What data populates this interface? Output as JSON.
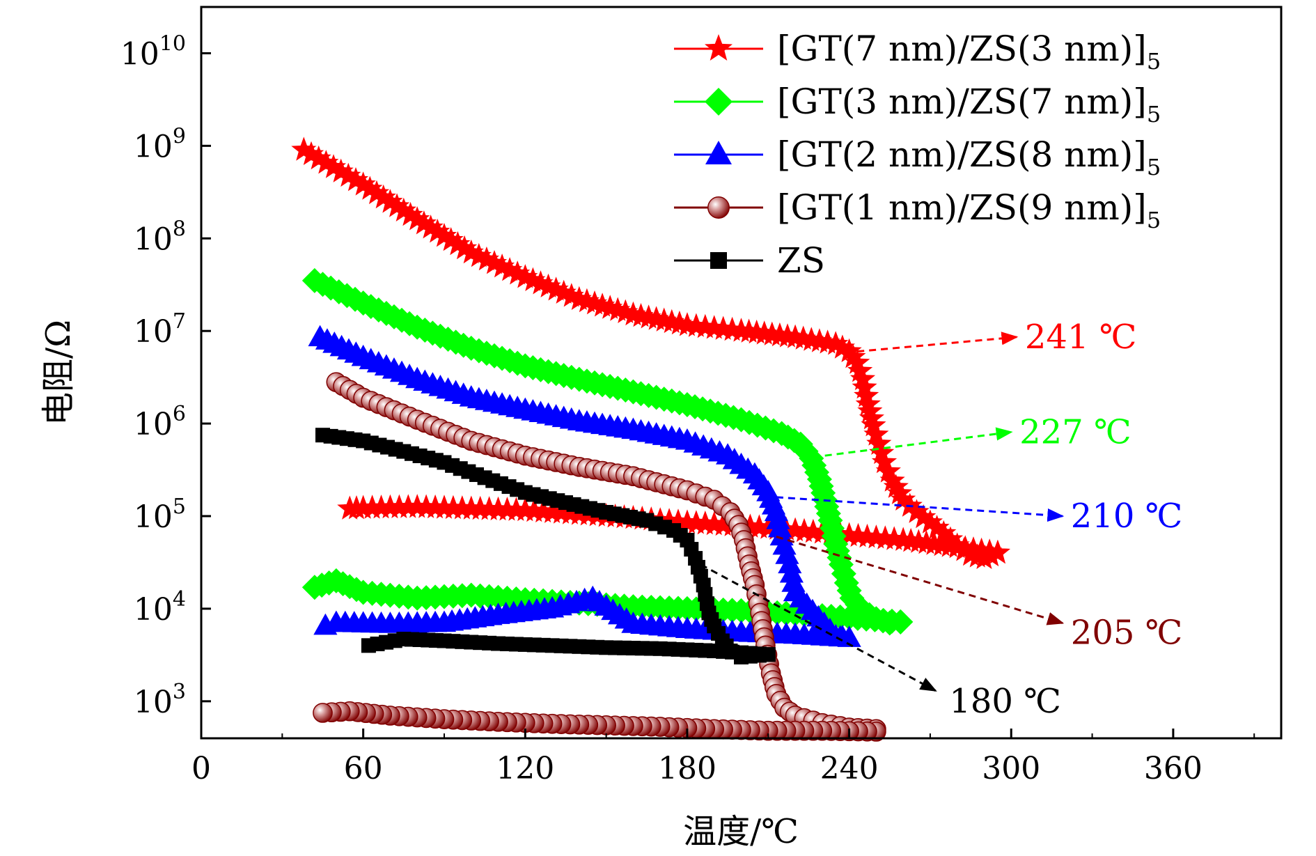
{
  "chart_data": {
    "type": "scatter",
    "xlabel": "温度/℃",
    "ylabel": "电阻/Ω",
    "xlim": [
      0,
      400
    ],
    "ylim_log10": [
      2.6,
      10.5
    ],
    "y_scale": "log",
    "x_ticks": [
      "0",
      "60",
      "120",
      "180",
      "240",
      "300",
      "360"
    ],
    "x_tick_values": [
      0,
      60,
      120,
      180,
      240,
      300,
      360
    ],
    "y_ticks": [
      {
        "base": "10",
        "exp": "3",
        "value": 3
      },
      {
        "base": "10",
        "exp": "4",
        "value": 4
      },
      {
        "base": "10",
        "exp": "5",
        "value": 5
      },
      {
        "base": "10",
        "exp": "6",
        "value": 6
      },
      {
        "base": "10",
        "exp": "7",
        "value": 7
      },
      {
        "base": "10",
        "exp": "8",
        "value": 8
      },
      {
        "base": "10",
        "exp": "9",
        "value": 9
      },
      {
        "base": "10",
        "exp": "10",
        "value": 10
      }
    ],
    "legend_position": "top-right",
    "series": [
      {
        "name": "[GT(7 nm)/ZS(3 nm)]",
        "name_subscript": "5",
        "color": "#ff0000",
        "marker": "star",
        "heating": [
          [
            38,
            900000000
          ],
          [
            60,
            380000000
          ],
          [
            80,
            160000000
          ],
          [
            100,
            70000000
          ],
          [
            120,
            38000000
          ],
          [
            140,
            22000000
          ],
          [
            160,
            15000000
          ],
          [
            180,
            11500000
          ],
          [
            200,
            10000000
          ],
          [
            220,
            8500000
          ],
          [
            235,
            7200000
          ],
          [
            240,
            6000000
          ],
          [
            243,
            4500000
          ],
          [
            245,
            3000000
          ],
          [
            247,
            1600000
          ],
          [
            249,
            950000
          ],
          [
            251,
            600000
          ],
          [
            253,
            380000
          ],
          [
            256,
            240000
          ],
          [
            260,
            150000
          ],
          [
            265,
            110000
          ],
          [
            270,
            85000
          ],
          [
            275,
            65000
          ],
          [
            280,
            48000
          ],
          [
            285,
            38000
          ],
          [
            290,
            35000
          ],
          [
            295,
            40000
          ]
        ],
        "cooling": [
          [
            295,
            40000
          ],
          [
            280,
            46000
          ],
          [
            260,
            55000
          ],
          [
            240,
            62000
          ],
          [
            220,
            70000
          ],
          [
            200,
            78000
          ],
          [
            180,
            85000
          ],
          [
            160,
            95000
          ],
          [
            140,
            105000
          ],
          [
            120,
            115000
          ],
          [
            100,
            120000
          ],
          [
            80,
            125000
          ],
          [
            60,
            122000
          ],
          [
            55,
            120000
          ]
        ]
      },
      {
        "name": "[GT(3 nm)/ZS(7 nm)]",
        "name_subscript": "5",
        "color": "#00ff00",
        "marker": "diamond",
        "heating": [
          [
            42,
            35000000
          ],
          [
            60,
            20000000
          ],
          [
            80,
            11000000
          ],
          [
            100,
            6500000
          ],
          [
            120,
            4200000
          ],
          [
            140,
            3000000
          ],
          [
            160,
            2200000
          ],
          [
            180,
            1600000
          ],
          [
            200,
            1100000
          ],
          [
            215,
            780000
          ],
          [
            222,
            600000
          ],
          [
            226,
            420000
          ],
          [
            229,
            250000
          ],
          [
            231,
            150000
          ],
          [
            233,
            90000
          ],
          [
            235,
            50000
          ],
          [
            237,
            30000
          ],
          [
            239,
            19000
          ],
          [
            241,
            13000
          ],
          [
            245,
            9500
          ],
          [
            250,
            7800
          ],
          [
            255,
            7000
          ],
          [
            259,
            7200
          ]
        ],
        "cooling": [
          [
            259,
            7200
          ],
          [
            240,
            8000
          ],
          [
            220,
            8800
          ],
          [
            200,
            9500
          ],
          [
            180,
            10000
          ],
          [
            160,
            10500
          ],
          [
            140,
            11500
          ],
          [
            120,
            12500
          ],
          [
            100,
            14000
          ],
          [
            80,
            13000
          ],
          [
            60,
            15000
          ],
          [
            50,
            20000
          ],
          [
            42,
            17000
          ]
        ]
      },
      {
        "name": "[GT(2 nm)/ZS(8 nm)]",
        "name_subscript": "5",
        "color": "#0000ff",
        "marker": "triangle",
        "heating": [
          [
            44,
            8500000
          ],
          [
            60,
            5200000
          ],
          [
            80,
            3000000
          ],
          [
            100,
            1900000
          ],
          [
            120,
            1400000
          ],
          [
            140,
            1050000
          ],
          [
            160,
            850000
          ],
          [
            180,
            650000
          ],
          [
            195,
            450000
          ],
          [
            205,
            280000
          ],
          [
            210,
            180000
          ],
          [
            213,
            110000
          ],
          [
            215,
            60000
          ],
          [
            218,
            30000
          ],
          [
            220,
            15000
          ]
        ],
        "cooling": [
          [
            220,
            15000
          ],
          [
            235,
            5000
          ],
          [
            240,
            4800
          ],
          [
            220,
            5200
          ],
          [
            200,
            5500
          ],
          [
            180,
            6000
          ],
          [
            160,
            6800
          ],
          [
            145,
            13000
          ],
          [
            130,
            10000
          ],
          [
            110,
            8500
          ],
          [
            90,
            7000
          ],
          [
            70,
            6800
          ],
          [
            50,
            7000
          ],
          [
            46,
            6500
          ]
        ]
      },
      {
        "name": "[GT(1 nm)/ZS(9 nm)]",
        "name_subscript": "5",
        "color": "#800000",
        "marker": "sphere",
        "heating": [
          [
            50,
            2800000
          ],
          [
            60,
            1900000
          ],
          [
            80,
            1100000
          ],
          [
            100,
            650000
          ],
          [
            120,
            450000
          ],
          [
            140,
            340000
          ],
          [
            160,
            270000
          ],
          [
            180,
            190000
          ],
          [
            190,
            150000
          ],
          [
            196,
            110000
          ],
          [
            199,
            80000
          ],
          [
            201,
            55000
          ],
          [
            203,
            30000
          ],
          [
            205,
            18000
          ],
          [
            207,
            9000
          ],
          [
            209,
            4000
          ],
          [
            211,
            2000
          ],
          [
            213,
            1200
          ],
          [
            216,
            850
          ],
          [
            220,
            700
          ],
          [
            230,
            580
          ],
          [
            240,
            520
          ],
          [
            250,
            500
          ]
        ],
        "cooling": [
          [
            250,
            470
          ],
          [
            230,
            480
          ],
          [
            210,
            480
          ],
          [
            190,
            500
          ],
          [
            170,
            530
          ],
          [
            150,
            550
          ],
          [
            130,
            570
          ],
          [
            110,
            600
          ],
          [
            90,
            640
          ],
          [
            70,
            700
          ],
          [
            55,
            780
          ],
          [
            45,
            750
          ]
        ]
      },
      {
        "name": "ZS",
        "name_subscript": "",
        "color": "#000000",
        "marker": "square",
        "heating": [
          [
            45,
            750000
          ],
          [
            60,
            650000
          ],
          [
            75,
            500000
          ],
          [
            90,
            380000
          ],
          [
            105,
            260000
          ],
          [
            120,
            180000
          ],
          [
            135,
            140000
          ],
          [
            150,
            110000
          ],
          [
            165,
            90000
          ],
          [
            175,
            70000
          ],
          [
            180,
            55000
          ],
          [
            183,
            35000
          ],
          [
            186,
            18000
          ],
          [
            188,
            9000
          ],
          [
            190,
            6500
          ],
          [
            193,
            4500
          ],
          [
            196,
            3500
          ],
          [
            200,
            3000
          ],
          [
            210,
            3200
          ]
        ],
        "cooling": [
          [
            210,
            3200
          ],
          [
            190,
            3500
          ],
          [
            170,
            3700
          ],
          [
            150,
            3800
          ],
          [
            130,
            4000
          ],
          [
            110,
            4200
          ],
          [
            90,
            4500
          ],
          [
            75,
            4700
          ],
          [
            62,
            4000
          ]
        ]
      }
    ],
    "annotations": [
      {
        "text": "241 ℃",
        "color": "#ff0000",
        "from": [
          243,
          6000000
        ],
        "to": [
          302,
          8600000
        ],
        "label_at": [
          303,
          8600000
        ]
      },
      {
        "text": "227 ℃",
        "color": "#00ff00",
        "from": [
          231,
          450000
        ],
        "to": [
          300,
          810000
        ],
        "label_at": [
          301,
          810000
        ]
      },
      {
        "text": "210 ℃",
        "color": "#0000ff",
        "from": [
          213,
          160000
        ],
        "to": [
          319,
          100000
        ],
        "label_at": [
          320,
          100000
        ]
      },
      {
        "text": "205 ℃",
        "color": "#800000",
        "from": [
          213,
          60000
        ],
        "to": [
          319,
          7000
        ],
        "label_at": [
          320,
          5500
        ]
      },
      {
        "text": "180 ℃",
        "color": "#000000",
        "from": [
          185,
          30000
        ],
        "to": [
          272,
          1300
        ],
        "label_at": [
          275,
          1000
        ]
      }
    ]
  }
}
